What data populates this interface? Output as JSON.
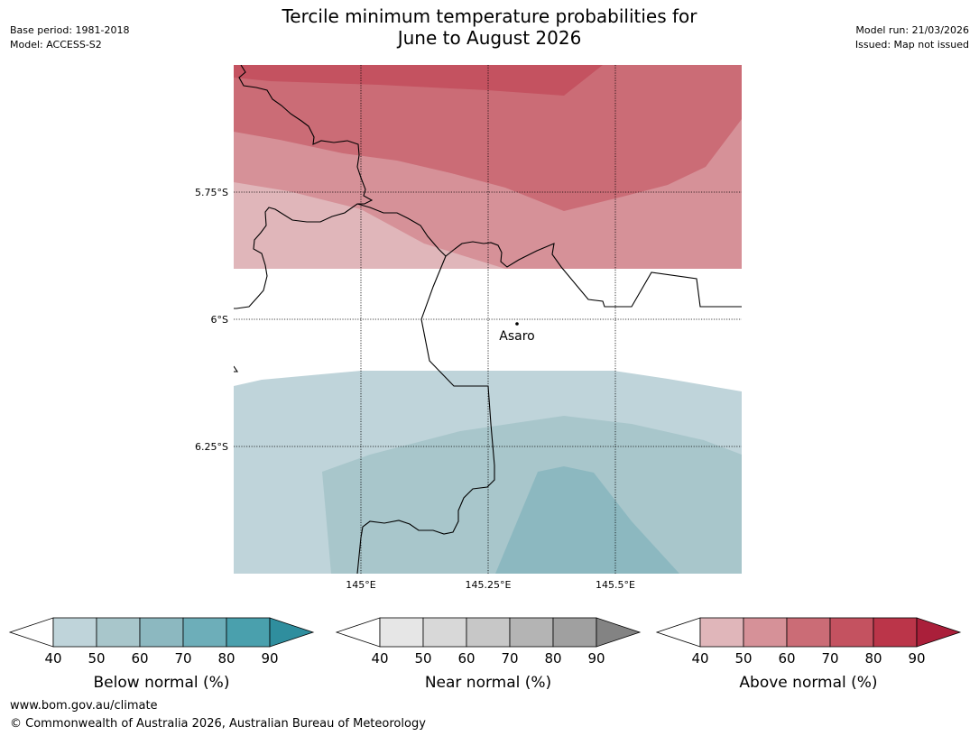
{
  "header": {
    "title_line1": "Tercile minimum temperature probabilities for",
    "title_line2": "June to August 2026",
    "base_period": "Base period: 1981-2018",
    "model": "Model: ACCESS-S2",
    "model_run": "Model run: 21/03/2026",
    "issued": "Issued: Map not issued"
  },
  "map": {
    "lat_labels": [
      "5.75°S",
      "6°S",
      "6.25°S"
    ],
    "lon_labels": [
      "145°E",
      "145.25°E",
      "145.5°E"
    ],
    "place": "Asaro"
  },
  "colorbars": [
    {
      "label": "Below normal (%)",
      "ticks": [
        "40",
        "50",
        "60",
        "70",
        "80",
        "90"
      ],
      "colors": [
        "#bfd4da",
        "#a8c6cb",
        "#8cb8c0",
        "#6daeb9",
        "#4aa0ad",
        "#2f8e9e"
      ],
      "low_color": "#ffffff"
    },
    {
      "label": "Near normal (%)",
      "ticks": [
        "40",
        "50",
        "60",
        "70",
        "80",
        "90"
      ],
      "colors": [
        "#e6e6e6",
        "#d8d8d8",
        "#c7c7c7",
        "#b4b4b4",
        "#a0a0a0",
        "#838383"
      ],
      "low_color": "#ffffff"
    },
    {
      "label": "Above normal (%)",
      "ticks": [
        "40",
        "50",
        "60",
        "70",
        "80",
        "90"
      ],
      "colors": [
        "#e0b6ba",
        "#d69198",
        "#cb6c76",
        "#c45260",
        "#bb3549",
        "#aa1f3a"
      ],
      "low_color": "#ffffff"
    }
  ],
  "footer": {
    "url": "www.bom.gov.au/climate",
    "copyright": "© Commonwealth of Australia 2026, Australian Bureau of Meteorology"
  }
}
